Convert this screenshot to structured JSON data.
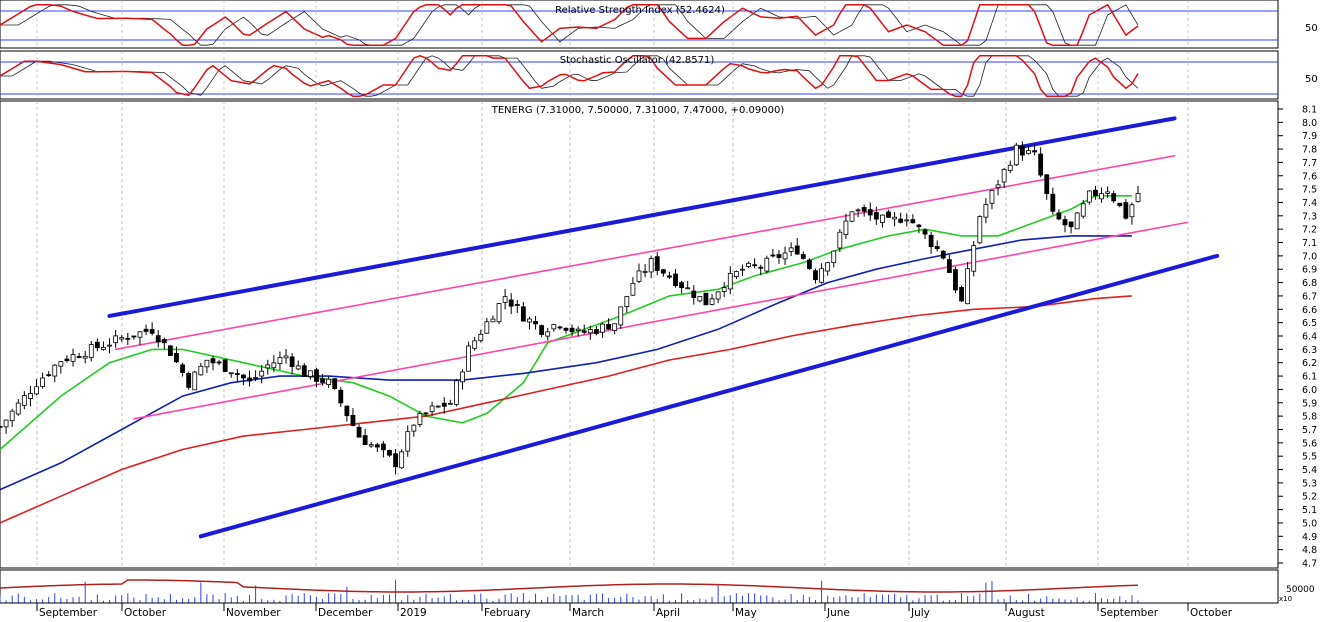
{
  "chart_data": {
    "type": "candlestick",
    "symbol": "TENERG",
    "main_title": "TENERG (7.31000, 7.50000, 7.31000, 7.47000, +0.09000)",
    "ohlc_last": {
      "open": 7.31,
      "high": 7.5,
      "low": 7.31,
      "close": 7.47,
      "change": 0.09
    },
    "price_axis": {
      "min": 4.7,
      "max": 8.1,
      "tick_labels": [
        "8.1",
        "8.0",
        "7.9",
        "7.8",
        "7.7",
        "7.6",
        "7.5",
        "7.4",
        "7.3",
        "7.2",
        "7.1",
        "7.0",
        "6.9",
        "6.8",
        "6.7",
        "6.6",
        "6.5",
        "6.4",
        "6.3",
        "6.2",
        "6.1",
        "6.0",
        "5.9",
        "5.8",
        "5.7",
        "5.6",
        "5.5",
        "5.4",
        "5.3",
        "5.2",
        "5.1",
        "5.0",
        "4.9",
        "4.8",
        "4.7"
      ]
    },
    "x_axis": {
      "months": [
        "September",
        "October",
        "November",
        "December",
        "2019",
        "February",
        "March",
        "April",
        "May",
        "June",
        "July",
        "August",
        "September",
        "October"
      ]
    },
    "indicators": [
      {
        "name": "Relative Strength Index",
        "label": "Relative Strength Index (52.4624)",
        "value": 52.4624,
        "level_label": "50"
      },
      {
        "name": "Stochastic Oscillator",
        "label": "Stochastic Oscillator (42.8571)",
        "value": 42.8571,
        "level_label": "50"
      }
    ],
    "volume_panel": {
      "tick_label": "50000",
      "multiplier_label": "x10"
    },
    "price_series": [
      {
        "t": 0,
        "p": 5.72
      },
      {
        "t": 6,
        "p": 6.05
      },
      {
        "t": 10,
        "p": 6.22
      },
      {
        "t": 15,
        "p": 6.3
      },
      {
        "t": 21,
        "p": 6.4
      },
      {
        "t": 25,
        "p": 6.45
      },
      {
        "t": 28,
        "p": 6.28
      },
      {
        "t": 31,
        "p": 6.05
      },
      {
        "t": 34,
        "p": 6.22
      },
      {
        "t": 38,
        "p": 6.15
      },
      {
        "t": 41,
        "p": 6.05
      },
      {
        "t": 44,
        "p": 6.18
      },
      {
        "t": 47,
        "p": 6.25
      },
      {
        "t": 50,
        "p": 6.12
      },
      {
        "t": 54,
        "p": 6.05
      },
      {
        "t": 56,
        "p": 5.9
      },
      {
        "t": 59,
        "p": 5.65
      },
      {
        "t": 62,
        "p": 5.55
      },
      {
        "t": 65,
        "p": 5.45
      },
      {
        "t": 68,
        "p": 5.75
      },
      {
        "t": 71,
        "p": 5.85
      },
      {
        "t": 74,
        "p": 5.9
      },
      {
        "t": 77,
        "p": 6.3
      },
      {
        "t": 80,
        "p": 6.5
      },
      {
        "t": 83,
        "p": 6.7
      },
      {
        "t": 86,
        "p": 6.55
      },
      {
        "t": 89,
        "p": 6.45
      },
      {
        "t": 92,
        "p": 6.5
      },
      {
        "t": 95,
        "p": 6.42
      },
      {
        "t": 98,
        "p": 6.45
      },
      {
        "t": 101,
        "p": 6.5
      },
      {
        "t": 104,
        "p": 6.8
      },
      {
        "t": 107,
        "p": 6.95
      },
      {
        "t": 110,
        "p": 6.85
      },
      {
        "t": 113,
        "p": 6.75
      },
      {
        "t": 116,
        "p": 6.65
      },
      {
        "t": 119,
        "p": 6.8
      },
      {
        "t": 122,
        "p": 6.9
      },
      {
        "t": 125,
        "p": 6.92
      },
      {
        "t": 128,
        "p": 7.0
      },
      {
        "t": 131,
        "p": 7.05
      },
      {
        "t": 134,
        "p": 6.85
      },
      {
        "t": 137,
        "p": 7.05
      },
      {
        "t": 140,
        "p": 7.35
      },
      {
        "t": 143,
        "p": 7.3
      },
      {
        "t": 146,
        "p": 7.25
      },
      {
        "t": 149,
        "p": 7.3
      },
      {
        "t": 152,
        "p": 7.15
      },
      {
        "t": 155,
        "p": 7.0
      },
      {
        "t": 158,
        "p": 6.65
      },
      {
        "t": 161,
        "p": 7.3
      },
      {
        "t": 164,
        "p": 7.55
      },
      {
        "t": 167,
        "p": 7.8
      },
      {
        "t": 170,
        "p": 7.75
      },
      {
        "t": 173,
        "p": 7.3
      },
      {
        "t": 176,
        "p": 7.2
      },
      {
        "t": 179,
        "p": 7.45
      },
      {
        "t": 182,
        "p": 7.5
      },
      {
        "t": 185,
        "p": 7.3
      },
      {
        "t": 187,
        "p": 7.47
      }
    ],
    "moving_averages": [
      {
        "color": "#22cc22",
        "points": [
          [
            0,
            5.55
          ],
          [
            10,
            5.95
          ],
          [
            18,
            6.2
          ],
          [
            25,
            6.3
          ],
          [
            30,
            6.3
          ],
          [
            40,
            6.2
          ],
          [
            50,
            6.1
          ],
          [
            58,
            6.05
          ],
          [
            64,
            5.95
          ],
          [
            70,
            5.8
          ],
          [
            76,
            5.75
          ],
          [
            80,
            5.82
          ],
          [
            86,
            6.05
          ],
          [
            90,
            6.35
          ],
          [
            96,
            6.45
          ],
          [
            102,
            6.55
          ],
          [
            110,
            6.7
          ],
          [
            118,
            6.75
          ],
          [
            124,
            6.85
          ],
          [
            132,
            6.95
          ],
          [
            138,
            7.05
          ],
          [
            146,
            7.15
          ],
          [
            152,
            7.2
          ],
          [
            158,
            7.15
          ],
          [
            164,
            7.15
          ],
          [
            170,
            7.25
          ],
          [
            176,
            7.35
          ],
          [
            180,
            7.45
          ],
          [
            186,
            7.45
          ]
        ]
      },
      {
        "color": "#1020b0",
        "points": [
          [
            0,
            5.25
          ],
          [
            10,
            5.45
          ],
          [
            20,
            5.7
          ],
          [
            30,
            5.95
          ],
          [
            38,
            6.05
          ],
          [
            46,
            6.1
          ],
          [
            54,
            6.1
          ],
          [
            64,
            6.07
          ],
          [
            76,
            6.07
          ],
          [
            86,
            6.12
          ],
          [
            98,
            6.2
          ],
          [
            108,
            6.3
          ],
          [
            118,
            6.45
          ],
          [
            128,
            6.65
          ],
          [
            136,
            6.8
          ],
          [
            144,
            6.9
          ],
          [
            152,
            6.98
          ],
          [
            160,
            7.05
          ],
          [
            168,
            7.12
          ],
          [
            176,
            7.15
          ],
          [
            186,
            7.15
          ]
        ]
      },
      {
        "color": "#dd2020",
        "points": [
          [
            0,
            5.0
          ],
          [
            10,
            5.2
          ],
          [
            20,
            5.4
          ],
          [
            30,
            5.55
          ],
          [
            40,
            5.65
          ],
          [
            50,
            5.7
          ],
          [
            60,
            5.75
          ],
          [
            70,
            5.8
          ],
          [
            80,
            5.9
          ],
          [
            90,
            6.0
          ],
          [
            100,
            6.1
          ],
          [
            110,
            6.22
          ],
          [
            120,
            6.3
          ],
          [
            130,
            6.4
          ],
          [
            140,
            6.48
          ],
          [
            150,
            6.55
          ],
          [
            160,
            6.6
          ],
          [
            170,
            6.62
          ],
          [
            180,
            6.68
          ],
          [
            186,
            6.7
          ]
        ]
      }
    ],
    "trend_lines": [
      {
        "color": "#1a1ad8",
        "from": [
          18,
          6.55
        ],
        "to": [
          193,
          8.03
        ]
      },
      {
        "color": "#1a1ad8",
        "from": [
          33,
          4.9
        ],
        "to": [
          200,
          7.0
        ]
      },
      {
        "color": "#ff44aa",
        "from": [
          19,
          6.3
        ],
        "to": [
          193,
          7.75
        ]
      },
      {
        "color": "#ff44aa",
        "from": [
          22,
          5.78
        ],
        "to": [
          195,
          7.25
        ]
      }
    ]
  }
}
